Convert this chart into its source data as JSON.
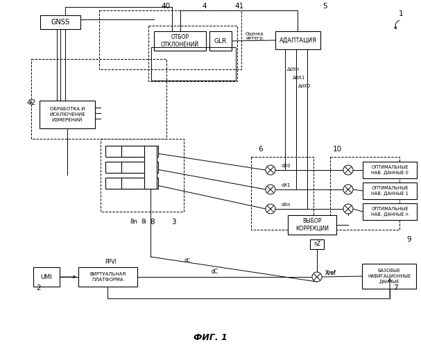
{
  "figsize": [
    6.07,
    5.0
  ],
  "dpi": 100,
  "bg": "#f0f0f0",
  "labels": {
    "gnss": "GNSS",
    "otbor": "ОТБОР\nОТКЛОНЕНИЙ",
    "glr": "GLR",
    "adapt": "АДАПТАЦИЯ",
    "obrab": "ОБРАБОТКА И\nИСКЛЮЧЕНИЕ\nИЗМЕРЕНИЙ",
    "virtual": "ВИРТУАЛЬНАЯ\nПЛАТФОРМА",
    "umi": "UMI",
    "vybor": "ВЫБОР\nКОРРЕКЦИИ",
    "opt0": "ОПТИМАЛЬНЫЕ\nНАВ. ДАННЫЕ 0",
    "opt1": "ОПТИМАЛЬНЫЕ\nНАВ. ДАННЫЕ 1",
    "optn": "ОПТИМАЛЬНЫЕ\nНАВ. ДАННЫЕ n",
    "baz": "БАЗОВЫЕ\nНАВИГАЦИОННЫЕ\nДАННЫЕ",
    "ocenka": "Оценка\nинтегр.",
    "xref": "Xref",
    "ddx0": "ΔdX0",
    "ddx1": "ΔdX1",
    "ddxn": "ΔdXn",
    "dx0": "dX0",
    "dx1": "dX1",
    "dxn": "dXn",
    "dC": "dC",
    "nZ": "nZ",
    "ppvi": "PPVI",
    "title": "ФИГ. 1",
    "n1": "1",
    "n2": "2",
    "n3": "3",
    "n4": "4",
    "n5": "5",
    "n6": "6",
    "n7": "7",
    "n8": "8",
    "n8i": "8i",
    "n8n": "8n",
    "n9": "9",
    "n10": "10",
    "n40": "40",
    "n41": "41",
    "n42": "42"
  }
}
